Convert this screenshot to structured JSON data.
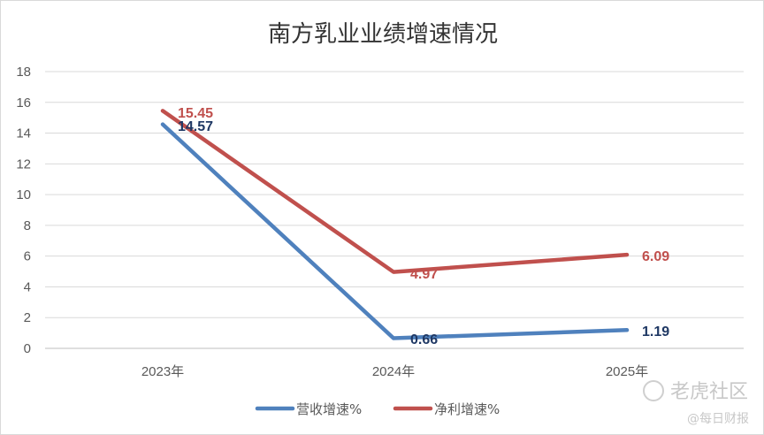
{
  "chart_data": {
    "type": "line",
    "title": "南方乳业业绩增速情况",
    "categories": [
      "2023年",
      "2024年",
      "2025年"
    ],
    "series": [
      {
        "name": "营收增速%",
        "values": [
          14.57,
          0.66,
          1.19
        ],
        "color": "#4F81BD",
        "label_color": "#1F3864"
      },
      {
        "name": "净利增速%",
        "values": [
          15.45,
          4.97,
          6.09
        ],
        "color": "#C0504D",
        "label_color": "#C0504D"
      }
    ],
    "ylim": [
      0,
      18
    ],
    "yticks": [
      0,
      2,
      4,
      6,
      8,
      10,
      12,
      14,
      16,
      18
    ],
    "grid": true,
    "legend": "bottom",
    "xlabel": "",
    "ylabel": ""
  },
  "watermark": {
    "brand": "老虎社区",
    "source": "@每日财报"
  }
}
